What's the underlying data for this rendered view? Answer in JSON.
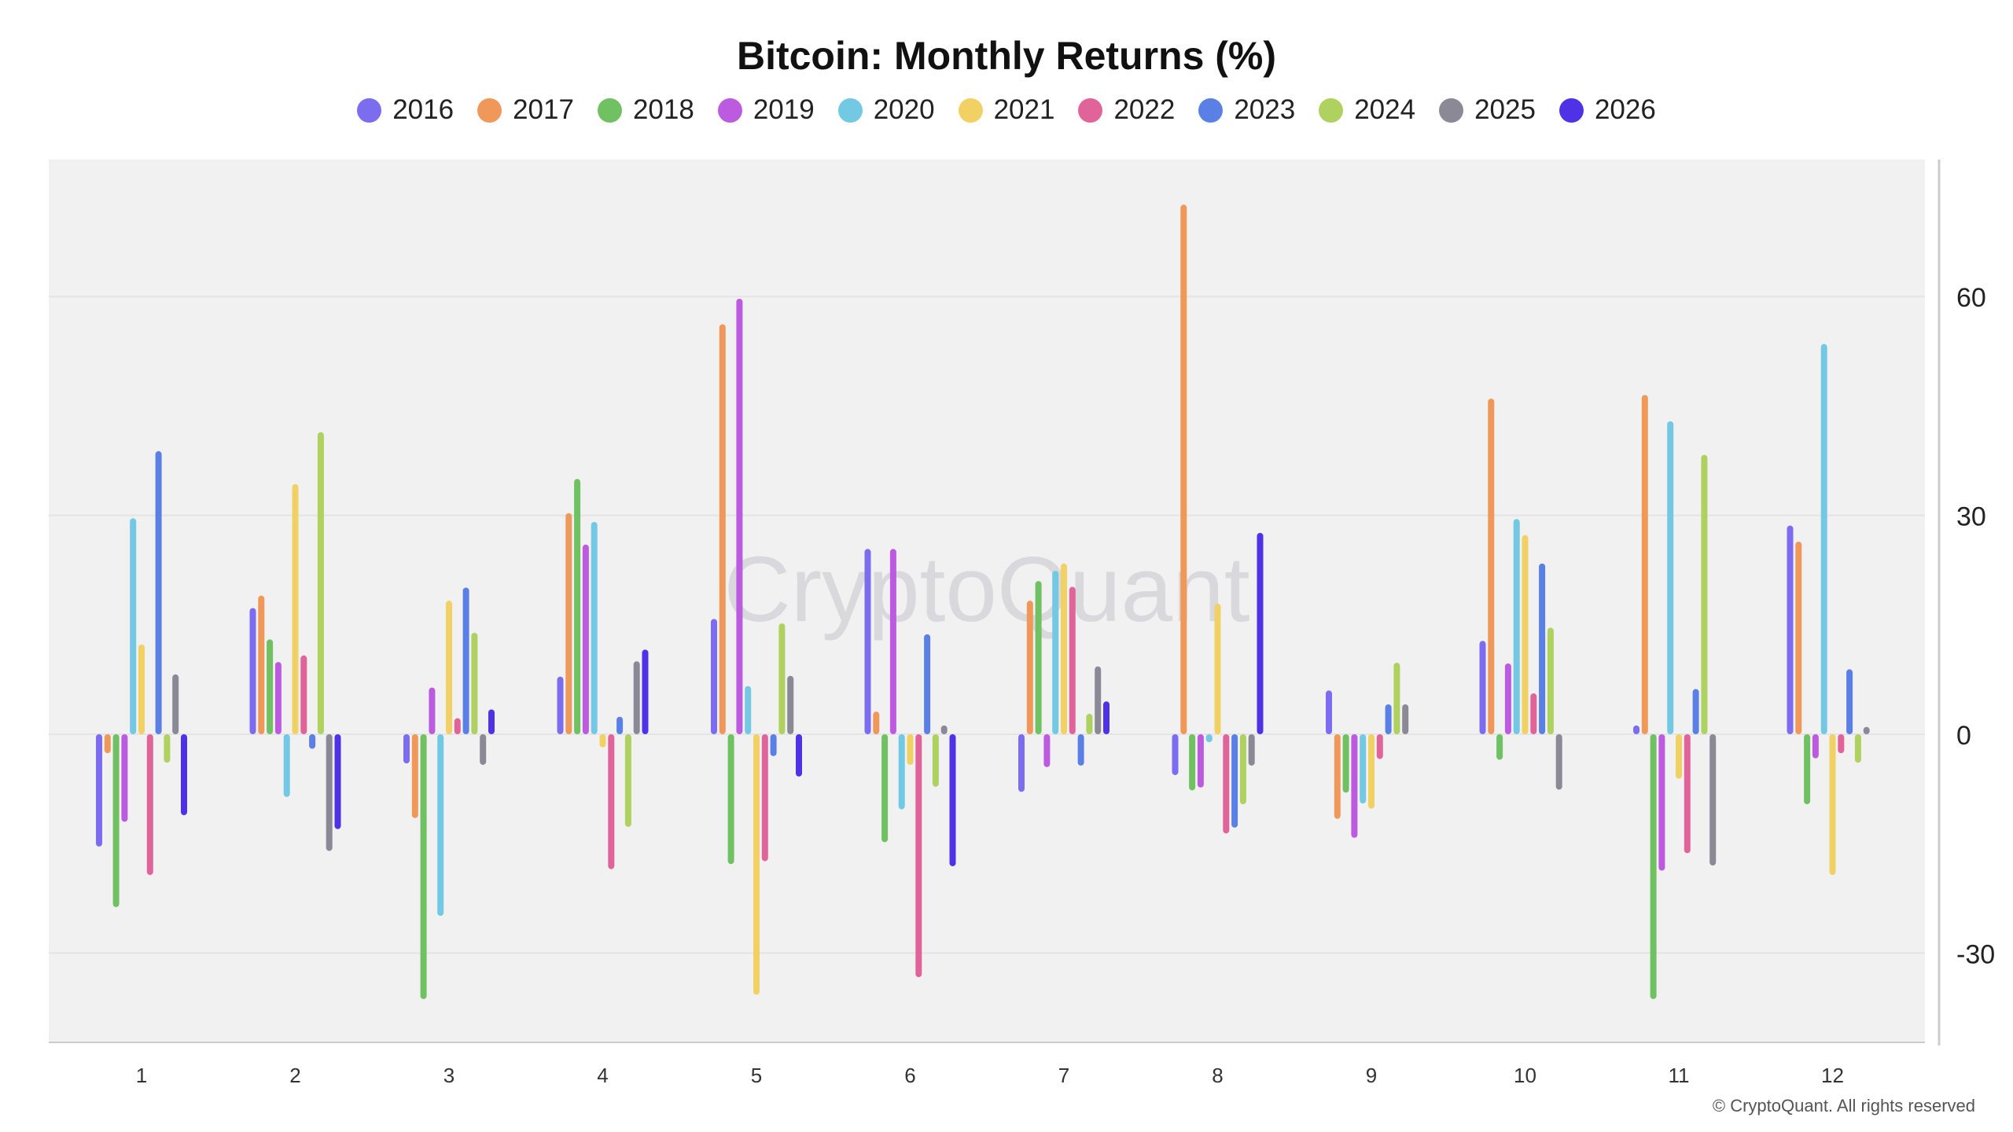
{
  "chart_data": {
    "type": "bar",
    "title": "Bitcoin: Monthly Returns (%)",
    "xlabel": "",
    "ylabel": "",
    "categories": [
      "1",
      "2",
      "3",
      "4",
      "5",
      "6",
      "7",
      "8",
      "9",
      "10",
      "11",
      "12"
    ],
    "ylim": [
      -42,
      76
    ],
    "yticks": [
      60,
      30,
      0,
      -30
    ],
    "grid": true,
    "legend_position": "top-center",
    "watermark": "CryptoQuant",
    "series": [
      {
        "name": "2016",
        "color": "#7b6cf0",
        "values": [
          -15.4,
          17.3,
          -4.0,
          7.9,
          15.8,
          25.4,
          -7.9,
          -5.6,
          6.0,
          12.8,
          1.2,
          28.6
        ]
      },
      {
        "name": "2017",
        "color": "#f0975a",
        "values": [
          -2.6,
          19.0,
          -11.5,
          30.3,
          56.2,
          3.1,
          18.3,
          72.6,
          -11.6,
          46.0,
          46.5,
          26.4
        ]
      },
      {
        "name": "2018",
        "color": "#6fc162",
        "values": [
          -23.7,
          13.0,
          -36.3,
          35.0,
          -17.8,
          -14.8,
          21.0,
          -7.7,
          -8.0,
          -3.5,
          -36.3,
          -9.6
        ]
      },
      {
        "name": "2019",
        "color": "#bd5be0",
        "values": [
          -12.0,
          9.9,
          6.4,
          26.0,
          59.7,
          25.4,
          -4.5,
          -7.3,
          -14.2,
          9.7,
          -18.7,
          -3.3
        ]
      },
      {
        "name": "2020",
        "color": "#73c9e4",
        "values": [
          29.6,
          -8.6,
          -24.9,
          29.1,
          6.6,
          -10.3,
          22.4,
          -1.1,
          -9.5,
          29.5,
          42.9,
          53.5
        ]
      },
      {
        "name": "2021",
        "color": "#f1d164",
        "values": [
          12.3,
          34.3,
          18.3,
          -1.8,
          -35.7,
          -4.2,
          23.4,
          17.9,
          -10.2,
          27.3,
          -6.1,
          -19.3
        ]
      },
      {
        "name": "2022",
        "color": "#e0639a",
        "values": [
          -19.3,
          10.8,
          2.2,
          -18.5,
          -17.4,
          -33.3,
          20.2,
          -13.6,
          -3.4,
          5.6,
          -16.3,
          -2.6
        ]
      },
      {
        "name": "2023",
        "color": "#5a80e6",
        "values": [
          38.8,
          -2.0,
          20.1,
          2.4,
          -3.0,
          13.7,
          -4.3,
          -12.8,
          4.1,
          23.4,
          6.2,
          8.9
        ]
      },
      {
        "name": "2024",
        "color": "#aed160",
        "values": [
          -3.9,
          41.4,
          13.9,
          -12.7,
          15.2,
          -7.2,
          2.8,
          -9.6,
          9.8,
          14.6,
          38.3,
          -3.9
        ]
      },
      {
        "name": "2025",
        "color": "#8a8995",
        "values": [
          8.2,
          -16.0,
          -4.2,
          10.0,
          8.0,
          1.2,
          9.3,
          -4.3,
          4.1,
          -7.6,
          -18.0,
          1.0
        ]
      },
      {
        "name": "2026",
        "color": "#5032e6",
        "values": [
          -11.1,
          -13.0,
          3.4,
          11.6,
          -5.8,
          -18.1,
          4.5,
          27.6,
          0,
          0,
          0,
          0
        ]
      }
    ]
  },
  "footer": "© CryptoQuant. All rights reserved"
}
